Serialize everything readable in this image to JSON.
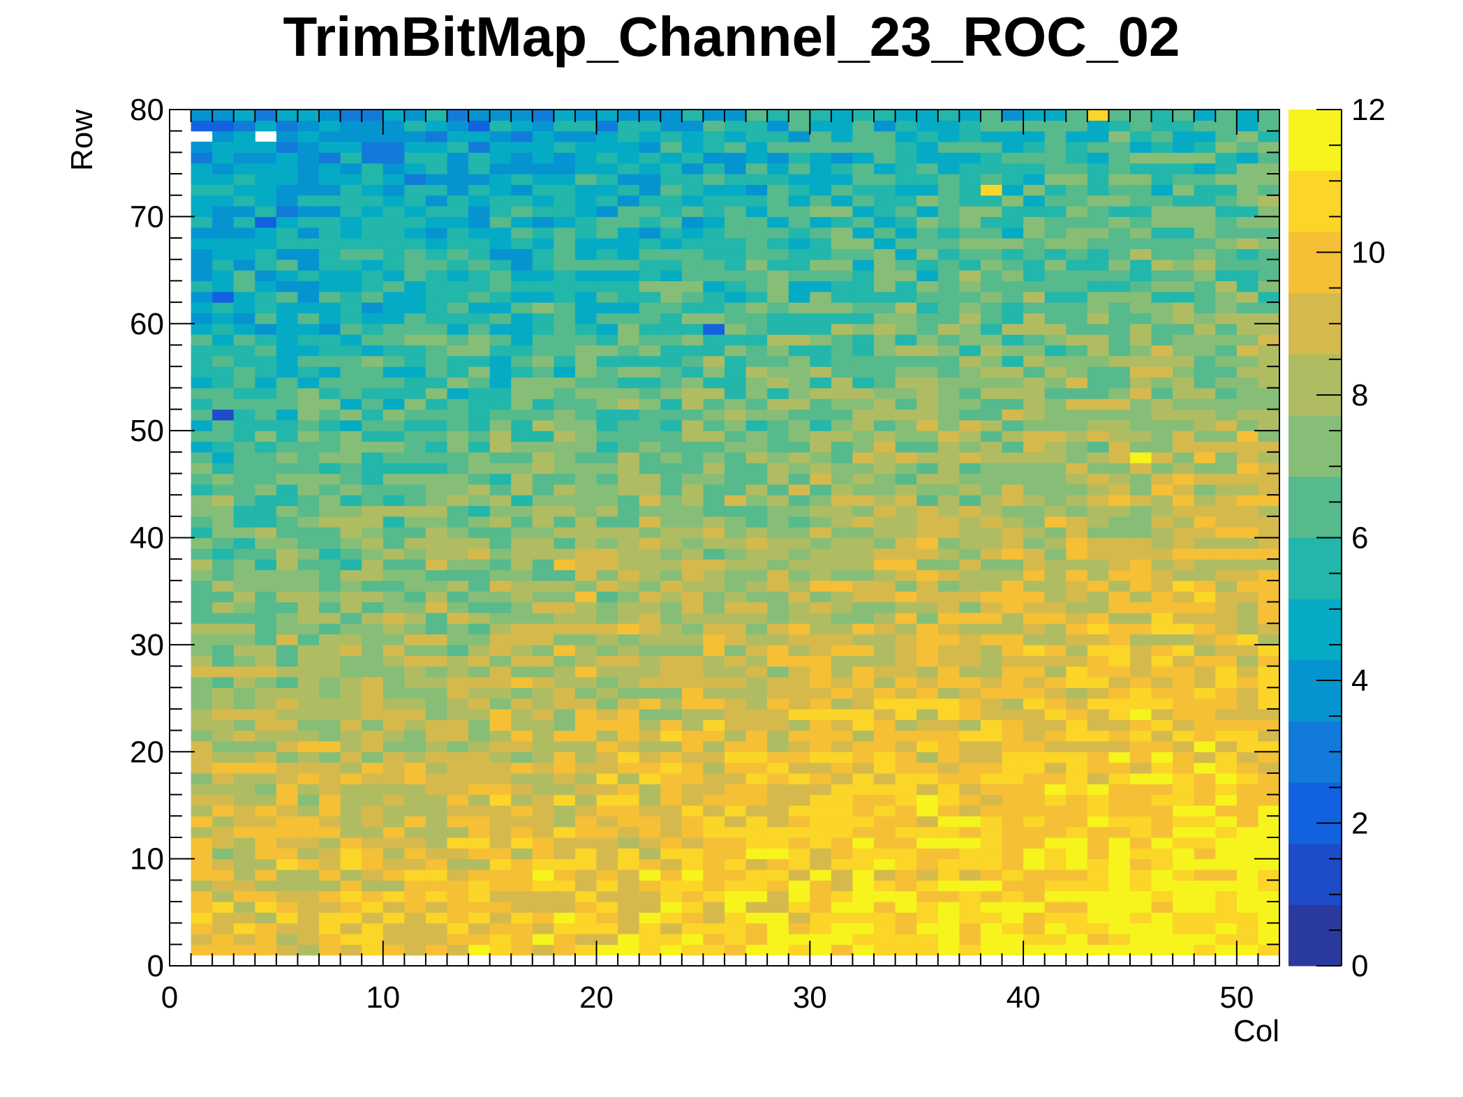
{
  "chart_data": {
    "type": "heatmap",
    "title": "TrimBitMap_Channel_23_ROC_02",
    "xlabel": "Col",
    "ylabel": "Row",
    "xlim": [
      0,
      52
    ],
    "ylim": [
      0,
      80
    ],
    "zlim": [
      0,
      12
    ],
    "x_ticks": [
      "0",
      "10",
      "20",
      "30",
      "40",
      "50"
    ],
    "y_ticks": [
      "0",
      "10",
      "20",
      "30",
      "40",
      "50",
      "60",
      "70",
      "80"
    ],
    "z_ticks": [
      "0",
      "2",
      "4",
      "6",
      "8",
      "10",
      "12"
    ],
    "colormap": "parula",
    "colors": [
      "#2b3a9e",
      "#1e4bc8",
      "#1262df",
      "#127ad8",
      "#0694d1",
      "#05abc5",
      "#23b6aa",
      "#56ba8d",
      "#86be77",
      "#b0bc62",
      "#d6b94d",
      "#f5c035",
      "#fbd527",
      "#f6f31d"
    ],
    "grid": false,
    "cells_note": "Values per bin estimated from colour; trend: low (2-5) at high rows / low cols, rising to 9-11 at low rows / high cols; empty bins at row 77, cols 1 and 4.",
    "trend_model": {
      "base": 9.6,
      "col_slope": 0.045,
      "row_slope": -0.075,
      "noise_amplitude": 1.3
    },
    "empty_cells": [
      [
        1,
        77
      ],
      [
        4,
        77
      ]
    ],
    "highlight_cells": [
      {
        "col": 45,
        "row": 47,
        "value": 11.8
      },
      {
        "col": 17,
        "row": 8,
        "value": 11.8
      },
      {
        "col": 35,
        "row": 15,
        "value": 11.5
      },
      {
        "col": 43,
        "row": 16,
        "value": 11.5
      },
      {
        "col": 49,
        "row": 11,
        "value": 11.2
      },
      {
        "col": 50,
        "row": 11,
        "value": 11.2
      },
      {
        "col": 46,
        "row": 6,
        "value": 11.0
      },
      {
        "col": 43,
        "row": 79,
        "value": 10.4
      },
      {
        "col": 38,
        "row": 72,
        "value": 10.4
      },
      {
        "col": 18,
        "row": 37,
        "value": 10.2
      },
      {
        "col": 19,
        "row": 34,
        "value": 10.2
      },
      {
        "col": 26,
        "row": 19,
        "value": 10.6
      },
      {
        "col": 1,
        "row": 78,
        "value": 2.2
      },
      {
        "col": 2,
        "row": 78,
        "value": 2.4
      },
      {
        "col": 14,
        "row": 78,
        "value": 1.8
      },
      {
        "col": 2,
        "row": 51,
        "value": 1.6
      },
      {
        "col": 2,
        "row": 62,
        "value": 1.8
      },
      {
        "col": 4,
        "row": 69,
        "value": 1.8
      },
      {
        "col": 25,
        "row": 59,
        "value": 2.0
      }
    ]
  }
}
